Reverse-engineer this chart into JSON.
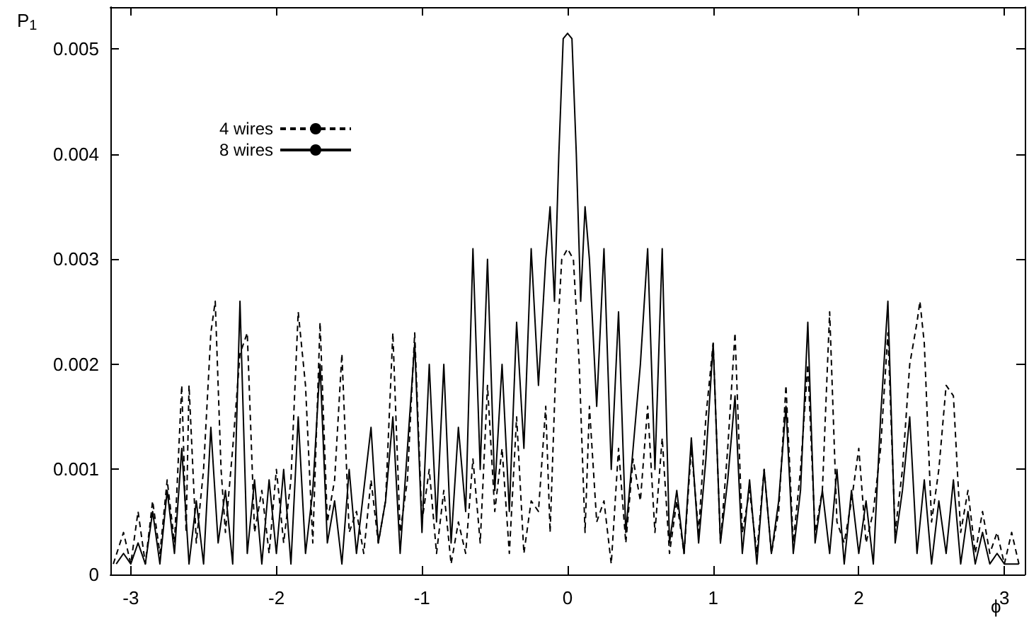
{
  "chart_data": {
    "type": "line",
    "xlabel": "ϕ",
    "ylabel": "P$_{1}$",
    "xlim": [
      -3.14,
      3.14
    ],
    "xticks": [
      -3,
      -2,
      -1,
      0,
      1,
      2,
      3
    ],
    "ylim": [
      0,
      0.0054
    ],
    "yticks": [
      0,
      0.001,
      0.002,
      0.003,
      0.004,
      0.005
    ],
    "grid": false,
    "legend": "top left",
    "marker": "none",
    "series": [
      {
        "name": "4 wires",
        "color": "#000000",
        "line_style": "dashed",
        "x": [
          -3.12,
          -3.05,
          -3.0,
          -2.95,
          -2.9,
          -2.85,
          -2.8,
          -2.75,
          -2.7,
          -2.65,
          -2.62,
          -2.6,
          -2.55,
          -2.5,
          -2.45,
          -2.42,
          -2.38,
          -2.35,
          -2.3,
          -2.25,
          -2.2,
          -2.15,
          -2.1,
          -2.05,
          -2.0,
          -1.95,
          -1.9,
          -1.85,
          -1.8,
          -1.75,
          -1.7,
          -1.65,
          -1.6,
          -1.55,
          -1.5,
          -1.45,
          -1.4,
          -1.35,
          -1.3,
          -1.25,
          -1.2,
          -1.15,
          -1.1,
          -1.05,
          -1.0,
          -0.95,
          -0.9,
          -0.85,
          -0.8,
          -0.75,
          -0.7,
          -0.65,
          -0.6,
          -0.55,
          -0.5,
          -0.45,
          -0.4,
          -0.35,
          -0.3,
          -0.25,
          -0.2,
          -0.15,
          -0.12,
          -0.08,
          -0.04,
          0,
          0.04,
          0.08,
          0.12,
          0.15,
          0.2,
          0.25,
          0.3,
          0.35,
          0.4,
          0.45,
          0.5,
          0.55,
          0.6,
          0.65,
          0.7,
          0.75,
          0.8,
          0.85,
          0.9,
          0.95,
          1.0,
          1.05,
          1.1,
          1.15,
          1.2,
          1.25,
          1.3,
          1.35,
          1.4,
          1.45,
          1.5,
          1.55,
          1.6,
          1.65,
          1.7,
          1.75,
          1.8,
          1.85,
          1.9,
          1.95,
          2.0,
          2.05,
          2.1,
          2.15,
          2.2,
          2.25,
          2.3,
          2.35,
          2.4,
          2.42,
          2.45,
          2.5,
          2.55,
          2.6,
          2.65,
          2.7,
          2.75,
          2.8,
          2.85,
          2.9,
          2.95,
          3.0,
          3.05,
          3.1
        ],
        "values": [
          0.0001,
          0.0004,
          0.0001,
          0.0006,
          0.0001,
          0.0007,
          0.0002,
          0.0009,
          0.0003,
          0.0018,
          0.0004,
          0.0018,
          0.0003,
          0.001,
          0.0023,
          0.0026,
          0.001,
          0.0004,
          0.0012,
          0.0021,
          0.0023,
          0.0004,
          0.0008,
          0.0002,
          0.001,
          0.0003,
          0.0009,
          0.0025,
          0.0018,
          0.0003,
          0.0024,
          0.0005,
          0.0009,
          0.0021,
          0.0004,
          0.0006,
          0.0002,
          0.0009,
          0.0003,
          0.0007,
          0.0023,
          0.0004,
          0.0009,
          0.0023,
          0.0005,
          0.001,
          0.0002,
          0.0008,
          0.0001,
          0.0005,
          0.0002,
          0.0011,
          0.0003,
          0.0018,
          0.0006,
          0.0012,
          0.0002,
          0.0015,
          0.0002,
          0.0007,
          0.0006,
          0.0016,
          0.0004,
          0.002,
          0.003,
          0.0031,
          0.003,
          0.002,
          0.0004,
          0.0016,
          0.0005,
          0.0007,
          0.0001,
          0.0012,
          0.0003,
          0.0011,
          0.0007,
          0.0016,
          0.0004,
          0.0013,
          0.0002,
          0.0007,
          0.0002,
          0.0012,
          0.0004,
          0.0015,
          0.0022,
          0.0003,
          0.0012,
          0.0023,
          0.0004,
          0.0008,
          0.0002,
          0.001,
          0.0002,
          0.0006,
          0.0018,
          0.0003,
          0.001,
          0.002,
          0.0004,
          0.0008,
          0.0025,
          0.0005,
          0.0003,
          0.0007,
          0.0012,
          0.0003,
          0.0006,
          0.0012,
          0.0023,
          0.0004,
          0.001,
          0.002,
          0.0024,
          0.0026,
          0.0022,
          0.0005,
          0.001,
          0.0018,
          0.0017,
          0.0004,
          0.0008,
          0.0002,
          0.0006,
          0.0002,
          0.0004,
          0.0001,
          0.0004,
          0.0001
        ]
      },
      {
        "name": "8 wires",
        "color": "#000000",
        "line_style": "solid",
        "x": [
          -3.1,
          -3.05,
          -3.0,
          -2.95,
          -2.9,
          -2.85,
          -2.8,
          -2.75,
          -2.7,
          -2.65,
          -2.6,
          -2.55,
          -2.5,
          -2.45,
          -2.4,
          -2.35,
          -2.3,
          -2.25,
          -2.2,
          -2.15,
          -2.1,
          -2.05,
          -2.0,
          -1.95,
          -1.9,
          -1.85,
          -1.8,
          -1.75,
          -1.7,
          -1.65,
          -1.6,
          -1.55,
          -1.5,
          -1.45,
          -1.4,
          -1.35,
          -1.3,
          -1.25,
          -1.2,
          -1.15,
          -1.1,
          -1.05,
          -1.0,
          -0.95,
          -0.9,
          -0.85,
          -0.8,
          -0.75,
          -0.7,
          -0.65,
          -0.6,
          -0.55,
          -0.5,
          -0.45,
          -0.4,
          -0.35,
          -0.3,
          -0.25,
          -0.2,
          -0.15,
          -0.12,
          -0.09,
          -0.06,
          -0.03,
          0,
          0.03,
          0.06,
          0.09,
          0.12,
          0.15,
          0.2,
          0.25,
          0.3,
          0.35,
          0.4,
          0.45,
          0.5,
          0.55,
          0.6,
          0.65,
          0.7,
          0.75,
          0.8,
          0.85,
          0.9,
          0.95,
          1.0,
          1.05,
          1.1,
          1.15,
          1.2,
          1.25,
          1.3,
          1.35,
          1.4,
          1.45,
          1.5,
          1.55,
          1.6,
          1.65,
          1.7,
          1.75,
          1.8,
          1.85,
          1.9,
          1.95,
          2.0,
          2.05,
          2.1,
          2.15,
          2.2,
          2.25,
          2.3,
          2.35,
          2.4,
          2.45,
          2.5,
          2.55,
          2.6,
          2.65,
          2.7,
          2.75,
          2.8,
          2.85,
          2.9,
          2.95,
          3.0,
          3.05,
          3.1
        ],
        "values": [
          0.0001,
          0.0002,
          0.0001,
          0.0003,
          0.0001,
          0.0006,
          0.0001,
          0.0008,
          0.0002,
          0.0012,
          0.0001,
          0.0007,
          0.0001,
          0.0014,
          0.0003,
          0.0008,
          0.0001,
          0.0026,
          0.0002,
          0.0009,
          0.0001,
          0.0009,
          0.0002,
          0.001,
          0.0001,
          0.0015,
          0.0002,
          0.0008,
          0.002,
          0.0003,
          0.0007,
          0.0001,
          0.001,
          0.0002,
          0.0008,
          0.0014,
          0.0003,
          0.0007,
          0.0015,
          0.0002,
          0.0012,
          0.0022,
          0.0004,
          0.002,
          0.0005,
          0.002,
          0.0003,
          0.0014,
          0.0006,
          0.0031,
          0.001,
          0.003,
          0.0008,
          0.002,
          0.0006,
          0.0024,
          0.0012,
          0.0031,
          0.0018,
          0.003,
          0.0035,
          0.0026,
          0.004,
          0.0051,
          0.00515,
          0.0051,
          0.004,
          0.0026,
          0.0035,
          0.003,
          0.0016,
          0.0031,
          0.001,
          0.0025,
          0.0004,
          0.0012,
          0.002,
          0.0031,
          0.001,
          0.0031,
          0.0003,
          0.0008,
          0.0002,
          0.0013,
          0.0003,
          0.0011,
          0.0022,
          0.0003,
          0.0009,
          0.0017,
          0.0002,
          0.0009,
          0.0001,
          0.001,
          0.0002,
          0.0007,
          0.0016,
          0.0002,
          0.0008,
          0.0024,
          0.0003,
          0.0008,
          0.0002,
          0.001,
          0.0001,
          0.0008,
          0.0002,
          0.0007,
          0.0001,
          0.0015,
          0.0026,
          0.0003,
          0.0008,
          0.0015,
          0.0002,
          0.0009,
          0.0001,
          0.0007,
          0.0002,
          0.0009,
          0.0001,
          0.0006,
          0.0001,
          0.0004,
          0.0001,
          0.0002,
          0.0001,
          0.0001,
          0.0001
        ]
      }
    ]
  }
}
